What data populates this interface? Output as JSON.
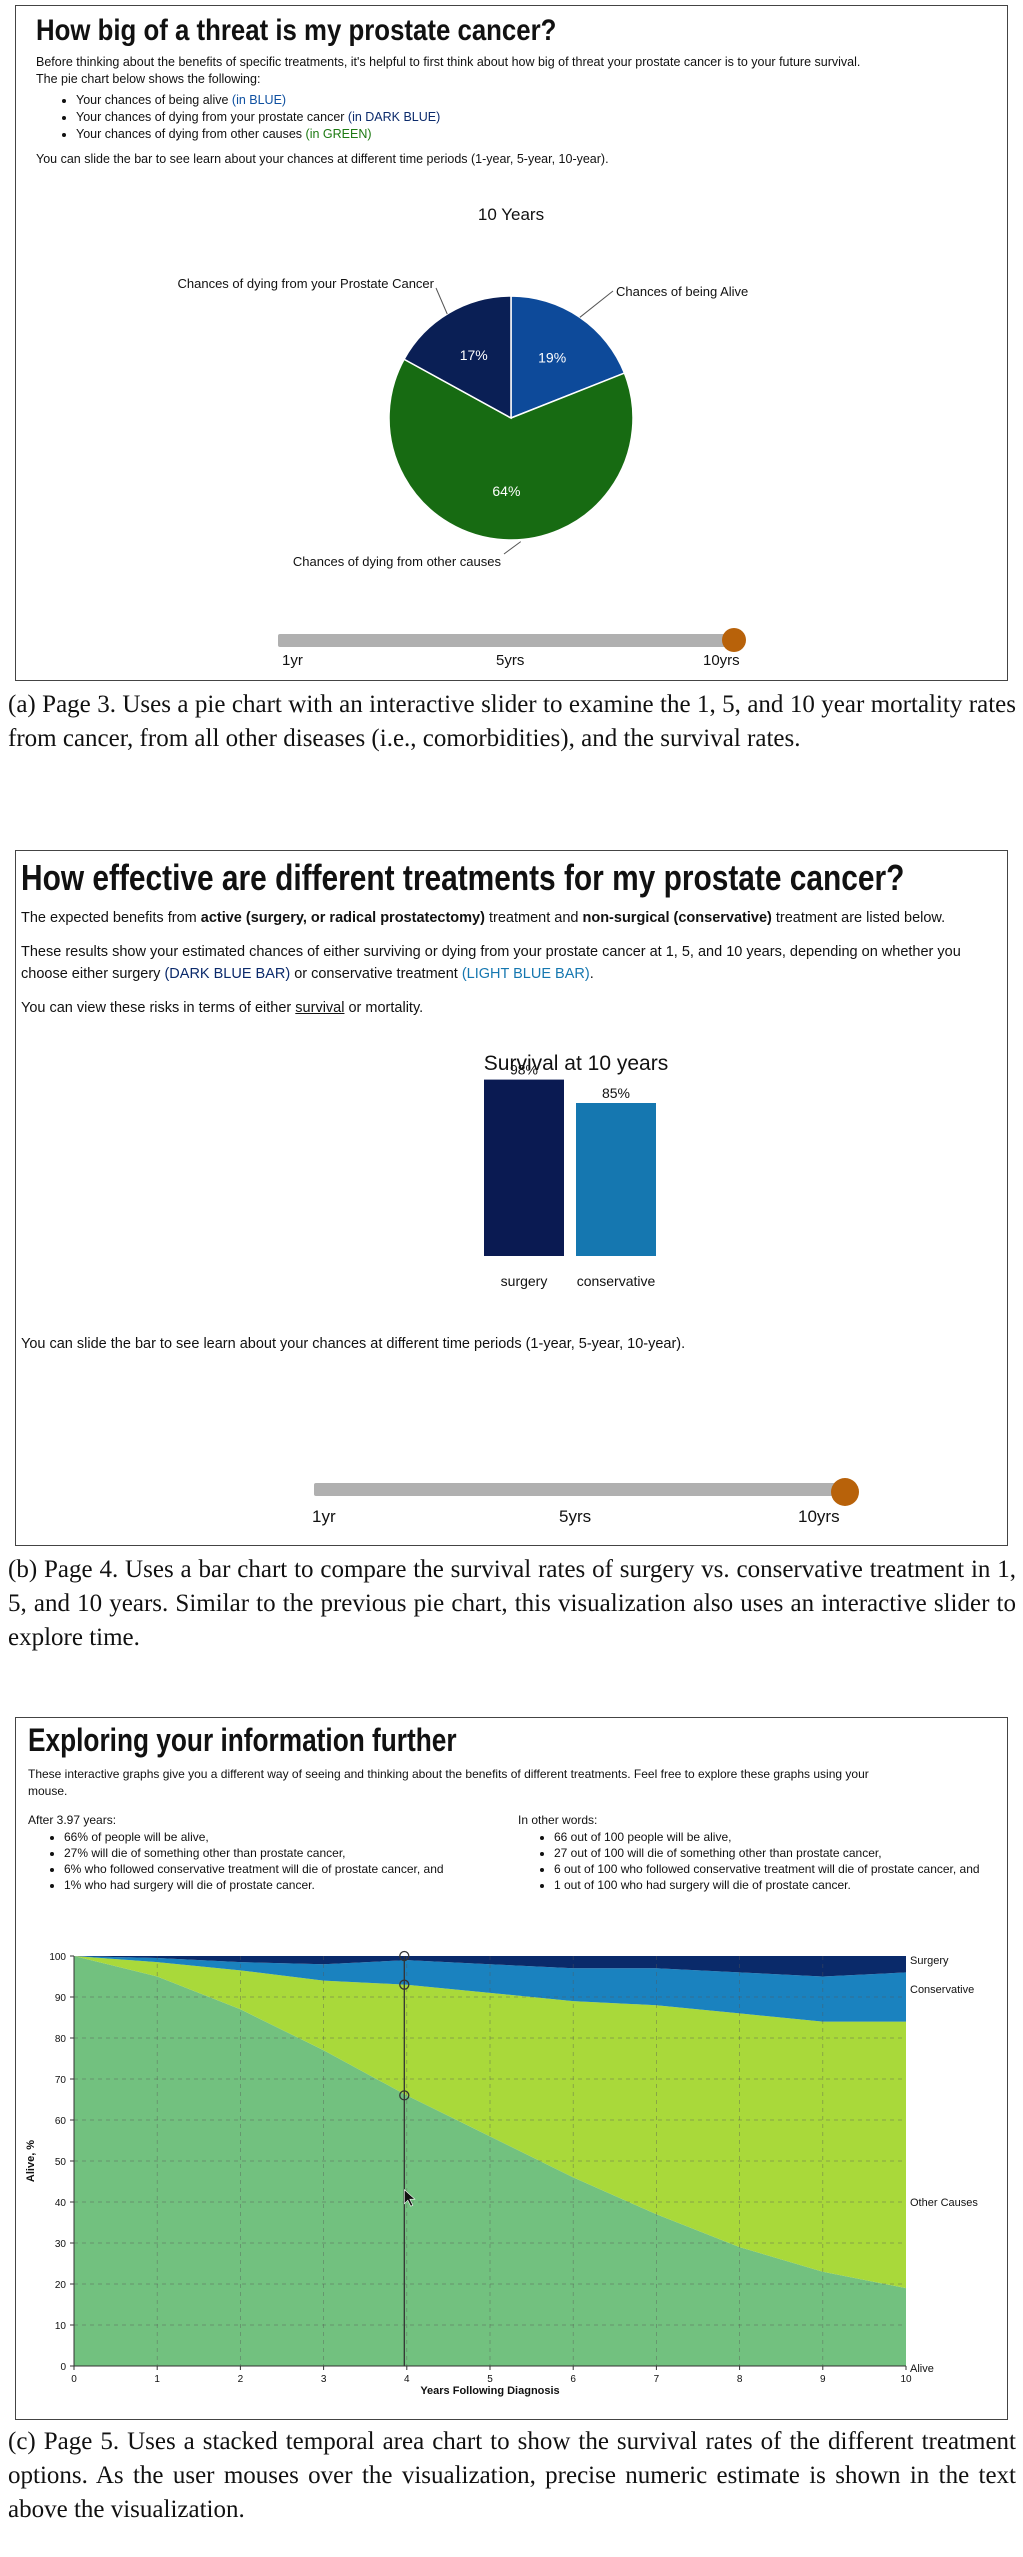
{
  "panel_a": {
    "title": "How big of a threat is my prostate cancer?",
    "intro1": "Before thinking about the benefits of specific treatments, it's helpful to first think about how big of threat your prostate cancer is to your future survival.",
    "intro2": "The pie chart below shows the following:",
    "bullets": [
      {
        "text": "Your chances of being alive ",
        "tag": "(in BLUE)"
      },
      {
        "text": "Your chances of dying from your prostate cancer ",
        "tag": "(in DARK BLUE)"
      },
      {
        "text": "Your chances of dying from other causes ",
        "tag": "(in GREEN)"
      }
    ],
    "slide_text": "You can slide the bar to see learn about your chances at different time periods (1-year, 5-year, 10-year).",
    "slider": {
      "labels": [
        "1yr",
        "5yrs",
        "10yrs"
      ],
      "selected_fraction": 1.0
    },
    "colors": {
      "alive": "#0d4a9a",
      "cancer": "#0a1f55",
      "other": "#176b12",
      "thumb": "#b8620a"
    }
  },
  "caption_a": "(a) Page 3. Uses a pie chart with an interactive slider to examine the 1, 5, and 10 year mortality rates from cancer, from all other diseases (i.e., comorbidities), and the survival rates.",
  "panel_b": {
    "title": "How effective are different treatments for my prostate cancer?",
    "p1_a": "The expected benefits from ",
    "p1_b": "active (surgery, or radical prostatectomy)",
    "p1_c": " treatment and ",
    "p1_d": "non-surgical (conservative)",
    "p1_e": " treatment are listed below.",
    "p2_a": "These results show your estimated chances of either surviving or dying from your prostate cancer at 1, 5, and 10 years, depending on whether you choose either surgery ",
    "p2_b": "(DARK BLUE BAR)",
    "p2_c": " or conservative treatment ",
    "p2_d": "(LIGHT BLUE BAR)",
    "p2_e": ".",
    "p3_a": "You can view these risks in terms of either ",
    "p3_link": "survival",
    "p3_b": " or mortality.",
    "slide_text": "You can slide the bar to see learn about your chances at different time periods (1-year, 5-year, 10-year).",
    "slider": {
      "labels": [
        "1yr",
        "5yrs",
        "10yrs"
      ],
      "selected_fraction": 1.0
    },
    "colors": {
      "surgery": "#0a1a52",
      "conservative": "#1577b0"
    }
  },
  "caption_b": "(b) Page 4. Uses a bar chart to compare the survival rates of surgery vs. conservative treatment in 1, 5, and 10 years. Similar to the previous pie chart, this visualization also uses an interactive slider to explore time.",
  "panel_c": {
    "title": "Exploring your information further",
    "intro": "These interactive graphs give you a different way of seeing and thinking about the benefits of different treatments. Feel free to explore these graphs using your mouse.",
    "left_head": "After 3.97 years:",
    "left_items": [
      "66% of people will be alive,",
      "27% will die of something other than prostate cancer,",
      "6% who followed conservative treatment will die of prostate cancer, and",
      "1% who had surgery will die of prostate cancer."
    ],
    "right_head": "In other words:",
    "right_items": [
      "66 out of 100 people will be alive,",
      "27 out of 100 will die of something other than prostate cancer,",
      "6 out of 100 who followed conservative treatment will die of prostate cancer, and",
      "1 out of 100 who had surgery will die of prostate cancer."
    ],
    "colors": {
      "alive": "#72c17f",
      "other": "#a9d93a",
      "conservative": "#1a82bf",
      "surgery": "#0a2a6a"
    }
  },
  "caption_c": "(c) Page 5. Uses a stacked temporal area chart to show the survival rates of the different treatment options. As the user mouses over the visualization, precise numeric estimate is shown in the text above the visualization.",
  "chart_data": [
    {
      "type": "pie",
      "title": "10 Years",
      "slices": [
        {
          "label": "Chances of being Alive",
          "value": 19,
          "display": "19%"
        },
        {
          "label": "Chances of dying from other causes",
          "value": 64,
          "display": "64%"
        },
        {
          "label": "Chances of dying from your Prostate Cancer",
          "value": 17,
          "display": "17%"
        }
      ]
    },
    {
      "type": "bar",
      "title": "Survival at 10 years",
      "categories": [
        "surgery",
        "conservative"
      ],
      "values": [
        98,
        85
      ],
      "labels": [
        "98%",
        "85%"
      ],
      "ylim": [
        0,
        100
      ]
    },
    {
      "type": "area",
      "xlabel": "Years Following Diagnosis",
      "ylabel": "Alive, %",
      "xlim": [
        0,
        10
      ],
      "ylim": [
        0,
        100
      ],
      "x_ticks": [
        "0",
        "1",
        "2",
        "3",
        "4",
        "5",
        "6",
        "7",
        "8",
        "9",
        "10"
      ],
      "y_ticks": [
        "0",
        "10",
        "20",
        "30",
        "40",
        "50",
        "60",
        "70",
        "80",
        "90",
        "100"
      ],
      "grid": true,
      "x": [
        0,
        1,
        2,
        3,
        4,
        5,
        6,
        7,
        8,
        9,
        10
      ],
      "series": [
        {
          "name": "Alive",
          "values": [
            100,
            95,
            87,
            77,
            66,
            56,
            46,
            37,
            29,
            23,
            19
          ]
        },
        {
          "name": "Other Causes",
          "values": [
            0,
            3.5,
            9.5,
            17,
            27,
            35,
            43,
            51,
            57,
            61,
            65
          ]
        },
        {
          "name": "Conservative",
          "values": [
            0,
            1,
            2,
            4,
            6,
            7,
            8,
            9,
            10,
            11,
            12
          ]
        },
        {
          "name": "Surgery",
          "values": [
            0,
            0.5,
            1.5,
            2,
            1,
            2,
            3,
            3,
            4,
            5,
            4
          ]
        }
      ],
      "hover_x": 3.97,
      "hover_points": [
        100,
        93,
        66
      ]
    }
  ]
}
